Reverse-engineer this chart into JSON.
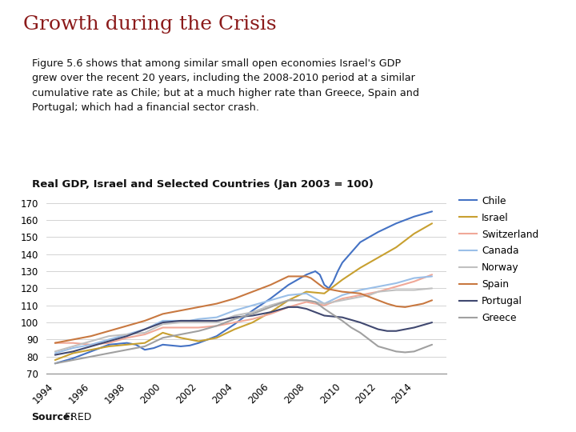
{
  "title": "Growth during the Crisis",
  "subtitle": "Figure 5.6 shows that among similar small open economies Israel's GDP\ngrew over the recent 20 years, including the 2008-2010 period at a similar\ncumulative rate as Chile; but at a much higher rate than Greece, Spain and\nPortugal; which had a financial sector crash.",
  "chart_title": "Real GDP, Israel and Selected Countries (Jan 2003 = 100)",
  "source_bold": "Source:",
  "source_normal": " FRED",
  "title_color": "#8B1A1A",
  "background_color": "#FFFFFF",
  "ylim": [
    70,
    175
  ],
  "yticks": [
    70,
    80,
    90,
    100,
    110,
    120,
    130,
    140,
    150,
    160,
    170
  ],
  "xlim_start": 1993.5,
  "xlim_end": 2015.8,
  "xtick_years": [
    1994,
    1996,
    1998,
    2000,
    2002,
    2004,
    2006,
    2008,
    2010,
    2012,
    2014
  ],
  "series": {
    "Chile": {
      "color": "#4472C4",
      "linewidth": 1.5,
      "data_years": [
        1994,
        1994.5,
        1995,
        1995.5,
        1996,
        1996.5,
        1997,
        1997.5,
        1998,
        1998.5,
        1999,
        1999.5,
        2000,
        2000.5,
        2001,
        2001.5,
        2002,
        2002.5,
        2003,
        2003.5,
        2004,
        2004.5,
        2005,
        2005.5,
        2006,
        2006.5,
        2007,
        2007.5,
        2008,
        2008.25,
        2008.5,
        2008.75,
        2009,
        2009.25,
        2009.5,
        2009.75,
        2010,
        2010.5,
        2011,
        2011.5,
        2012,
        2012.5,
        2013,
        2013.5,
        2014,
        2014.5,
        2015
      ],
      "data_values": [
        76,
        77.5,
        79,
        81,
        83,
        85,
        87,
        87.5,
        88,
        87,
        84,
        85,
        87,
        86.5,
        86,
        86.5,
        88,
        90,
        92,
        95.5,
        99,
        103,
        107,
        110.5,
        114,
        118,
        122,
        125,
        128,
        129,
        130,
        128,
        122,
        120,
        124,
        130,
        135,
        141,
        147,
        150,
        153,
        155.5,
        158,
        160,
        162,
        163.5,
        165
      ]
    },
    "Israel": {
      "color": "#C8A030",
      "linewidth": 1.5,
      "data_years": [
        1994,
        1994.5,
        1995,
        1995.5,
        1996,
        1996.5,
        1997,
        1997.5,
        1998,
        1998.5,
        1999,
        1999.5,
        2000,
        2000.5,
        2001,
        2001.5,
        2002,
        2002.5,
        2003,
        2003.5,
        2004,
        2004.5,
        2005,
        2005.5,
        2006,
        2006.5,
        2007,
        2007.5,
        2008,
        2008.5,
        2009,
        2009.5,
        2010,
        2010.5,
        2011,
        2011.5,
        2012,
        2012.5,
        2013,
        2013.5,
        2014,
        2014.5,
        2015
      ],
      "data_values": [
        78,
        80,
        82,
        83,
        84,
        85,
        86,
        86.5,
        87,
        87.5,
        88,
        91,
        94,
        92.5,
        91,
        90,
        89,
        90,
        91,
        93.5,
        96,
        98,
        100,
        103,
        106,
        109.5,
        113,
        115.5,
        118,
        117.5,
        117,
        121,
        125,
        128.5,
        132,
        135,
        138,
        141,
        144,
        148,
        152,
        155,
        158
      ]
    },
    "Switzerland": {
      "color": "#F0A898",
      "linewidth": 1.5,
      "data_years": [
        1994,
        1994.5,
        1995,
        1995.5,
        1996,
        1996.5,
        1997,
        1997.5,
        1998,
        1998.5,
        1999,
        1999.5,
        2000,
        2000.5,
        2001,
        2001.5,
        2002,
        2002.5,
        2003,
        2003.5,
        2004,
        2004.5,
        2005,
        2005.5,
        2006,
        2006.5,
        2007,
        2007.5,
        2008,
        2008.5,
        2009,
        2009.5,
        2010,
        2010.5,
        2011,
        2011.5,
        2012,
        2012.5,
        2013,
        2013.5,
        2014,
        2014.5,
        2015
      ],
      "data_values": [
        88,
        88,
        88,
        87.5,
        87,
        87.5,
        88,
        89.5,
        91,
        92,
        93,
        95,
        97,
        97,
        97,
        97,
        97,
        97.5,
        98,
        99,
        100,
        101,
        102,
        103.5,
        105,
        107,
        109,
        110.5,
        112,
        111,
        110,
        112,
        114,
        115,
        116,
        117,
        118,
        119.5,
        121,
        122.5,
        124,
        126,
        128
      ]
    },
    "Canada": {
      "color": "#9ABFE8",
      "linewidth": 1.5,
      "data_years": [
        1994,
        1994.5,
        1995,
        1995.5,
        1996,
        1996.5,
        1997,
        1997.5,
        1998,
        1998.5,
        1999,
        1999.5,
        2000,
        2000.5,
        2001,
        2001.5,
        2002,
        2002.5,
        2003,
        2003.5,
        2004,
        2004.5,
        2005,
        2005.5,
        2006,
        2006.5,
        2007,
        2007.5,
        2008,
        2008.5,
        2009,
        2009.5,
        2010,
        2010.5,
        2011,
        2011.5,
        2012,
        2012.5,
        2013,
        2013.5,
        2014,
        2014.5,
        2015
      ],
      "data_values": [
        82,
        83.5,
        85,
        86,
        87,
        88.5,
        90,
        91.5,
        93,
        94.5,
        96,
        98.5,
        101,
        101,
        101,
        101,
        102,
        102.5,
        103,
        105,
        107,
        108.5,
        110,
        111.5,
        113,
        114.5,
        116,
        116.5,
        117,
        114,
        111,
        113.5,
        116,
        117.5,
        119,
        120,
        121,
        122,
        123,
        124.5,
        126,
        126.5,
        127
      ]
    },
    "Norway": {
      "color": "#C0C0C0",
      "linewidth": 1.5,
      "data_years": [
        1994,
        1994.5,
        1995,
        1995.5,
        1996,
        1996.5,
        1997,
        1997.5,
        1998,
        1998.5,
        1999,
        1999.5,
        2000,
        2000.5,
        2001,
        2001.5,
        2002,
        2002.5,
        2003,
        2003.5,
        2004,
        2004.5,
        2005,
        2005.5,
        2006,
        2006.5,
        2007,
        2007.5,
        2008,
        2008.5,
        2009,
        2009.5,
        2010,
        2010.5,
        2011,
        2011.5,
        2012,
        2012.5,
        2013,
        2013.5,
        2014,
        2014.5,
        2015
      ],
      "data_values": [
        83,
        84.5,
        86,
        87.5,
        89,
        90.5,
        92,
        92.5,
        93,
        93.5,
        94,
        96.5,
        99,
        99.5,
        100,
        100,
        100,
        100,
        100,
        102,
        104,
        105,
        106,
        108,
        110,
        111.5,
        113,
        113,
        113,
        112,
        111,
        112,
        113,
        114,
        115,
        116,
        118,
        118.5,
        119,
        119,
        119,
        119.5,
        120
      ]
    },
    "Spain": {
      "color": "#C87840",
      "linewidth": 1.5,
      "data_years": [
        1994,
        1994.5,
        1995,
        1995.5,
        1996,
        1996.5,
        1997,
        1997.5,
        1998,
        1998.5,
        1999,
        1999.5,
        2000,
        2000.5,
        2001,
        2001.5,
        2002,
        2002.5,
        2003,
        2003.5,
        2004,
        2004.5,
        2005,
        2005.5,
        2006,
        2006.5,
        2007,
        2007.5,
        2008,
        2008.25,
        2008.5,
        2009,
        2009.5,
        2010,
        2010.5,
        2011,
        2011.5,
        2012,
        2012.5,
        2013,
        2013.5,
        2014,
        2014.5,
        2015
      ],
      "data_values": [
        88,
        89,
        90,
        91,
        92,
        93.5,
        95,
        96.5,
        98,
        99.5,
        101,
        103,
        105,
        106,
        107,
        108,
        109,
        110,
        111,
        112.5,
        114,
        116,
        118,
        120,
        122,
        124.5,
        127,
        127,
        127,
        126,
        124,
        120,
        119,
        118,
        117.5,
        117,
        115,
        113,
        111,
        109.5,
        109,
        110,
        111,
        113
      ]
    },
    "Portugal": {
      "color": "#404870",
      "linewidth": 1.5,
      "data_years": [
        1994,
        1994.5,
        1995,
        1995.5,
        1996,
        1996.5,
        1997,
        1997.5,
        1998,
        1998.5,
        1999,
        1999.5,
        2000,
        2000.5,
        2001,
        2001.5,
        2002,
        2002.5,
        2003,
        2003.5,
        2004,
        2004.5,
        2005,
        2005.5,
        2006,
        2006.5,
        2007,
        2007.5,
        2008,
        2008.5,
        2009,
        2009.5,
        2010,
        2010.5,
        2011,
        2011.5,
        2012,
        2012.5,
        2013,
        2013.5,
        2014,
        2014.5,
        2015
      ],
      "data_values": [
        81,
        82,
        83,
        84.5,
        86,
        87.5,
        89,
        90.5,
        92,
        94,
        96,
        98,
        100,
        100.5,
        101,
        101,
        101,
        101,
        101,
        102,
        103,
        103.5,
        104,
        105,
        106,
        107.5,
        109,
        109,
        108,
        106,
        104,
        103.5,
        103,
        101.5,
        100,
        98,
        96,
        95,
        95,
        96,
        97,
        98.5,
        100
      ]
    },
    "Greece": {
      "color": "#A0A0A0",
      "linewidth": 1.5,
      "data_years": [
        1994,
        1994.5,
        1995,
        1995.5,
        1996,
        1996.5,
        1997,
        1997.5,
        1998,
        1998.5,
        1999,
        1999.5,
        2000,
        2000.5,
        2001,
        2001.5,
        2002,
        2002.5,
        2003,
        2003.5,
        2004,
        2004.5,
        2005,
        2005.5,
        2006,
        2006.5,
        2007,
        2007.5,
        2008,
        2008.5,
        2009,
        2009.5,
        2010,
        2010.5,
        2011,
        2011.5,
        2012,
        2012.5,
        2013,
        2013.5,
        2014,
        2014.5,
        2015
      ],
      "data_values": [
        76,
        77,
        78,
        79,
        80,
        81,
        82,
        83,
        84,
        85,
        86,
        88.5,
        91,
        92,
        93,
        94,
        95,
        96.5,
        98,
        100,
        102,
        103.5,
        105,
        107,
        109,
        111,
        113,
        113,
        113,
        112,
        108,
        104.5,
        101,
        97,
        94,
        90,
        86,
        84.5,
        83,
        82.5,
        83,
        85,
        87
      ]
    }
  }
}
